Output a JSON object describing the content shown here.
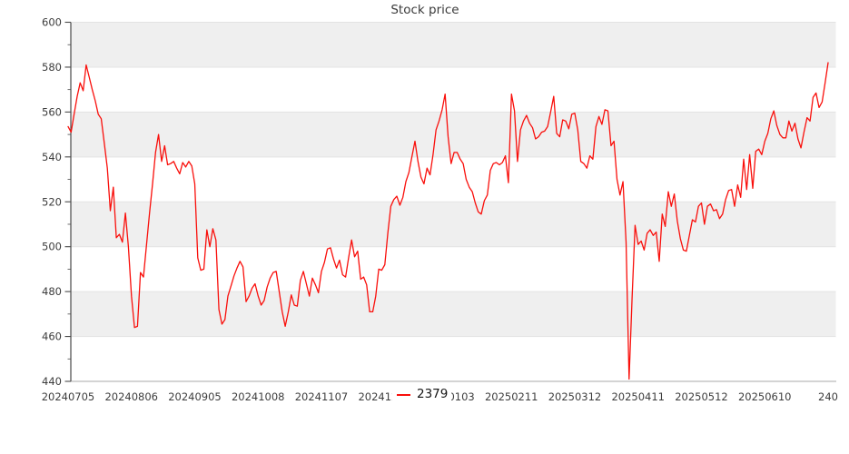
{
  "title": "Stock price",
  "legend": {
    "series_label": "2379"
  },
  "colors": {
    "line": "#f90f0b",
    "band": "#efefef",
    "grid_line": "#e3e3e3",
    "spine": "#4a4a4a",
    "baseline": "#a8a8a8",
    "tick_label": "#3d3d3d",
    "title": "#3a3a3a",
    "legend_text": "#141414"
  },
  "chart_data": {
    "type": "line",
    "title": "Stock price",
    "xlabel": "",
    "ylabel": "",
    "ylim": [
      440,
      600
    ],
    "y_major_step": 20,
    "y_minor_step": 10,
    "y_tick_labels": [
      "440",
      "460",
      "480",
      "500",
      "520",
      "540",
      "560",
      "580",
      "600"
    ],
    "grid": "horizontal-bands",
    "legend_position": "bottom-center",
    "x_ticks": [
      {
        "label": "20240705",
        "index": 0
      },
      {
        "label": "20240806",
        "index": 21
      },
      {
        "label": "20240905",
        "index": 42
      },
      {
        "label": "20241008",
        "index": 63
      },
      {
        "label": "20241107",
        "index": 84
      },
      {
        "label": "20241209",
        "index": 105
      },
      {
        "label": "20250103",
        "index": 126
      },
      {
        "label": "20250211",
        "index": 147
      },
      {
        "label": "20250312",
        "index": 168
      },
      {
        "label": "20250411",
        "index": 189
      },
      {
        "label": "20250512",
        "index": 210
      },
      {
        "label": "20250610",
        "index": 231
      },
      {
        "label": "240",
        "index": 252
      }
    ],
    "series": [
      {
        "name": "2379",
        "values": [
          553.5,
          551,
          559,
          567,
          573,
          569.5,
          581,
          575.5,
          570,
          565,
          559,
          557,
          546,
          535,
          516,
          526.5,
          504,
          505.5,
          502,
          515,
          500,
          478,
          464,
          464.5,
          488.5,
          486.5,
          501,
          515,
          528,
          542,
          550,
          538,
          545,
          536.5,
          537,
          538,
          535,
          532.5,
          537.5,
          535.5,
          538,
          536,
          528,
          495,
          489.5,
          490,
          507.5,
          500,
          508,
          503,
          472,
          465.5,
          467.5,
          478,
          482.5,
          487,
          490.5,
          493.5,
          491,
          475.5,
          478,
          481.5,
          483.5,
          478,
          474,
          476,
          482,
          486,
          488.5,
          489,
          480,
          471,
          464.5,
          471,
          478.5,
          474,
          473.5,
          485,
          489,
          483.5,
          478,
          486,
          483,
          479.5,
          489,
          493,
          499,
          499.5,
          494.5,
          490.5,
          494,
          487.5,
          486.5,
          495,
          503,
          495.5,
          498,
          485.5,
          486.5,
          483,
          471,
          471,
          478,
          490,
          489.5,
          492,
          506,
          518,
          521,
          522.5,
          518.5,
          522,
          529,
          533,
          540,
          547,
          538,
          531,
          528,
          535,
          532,
          541,
          552,
          556,
          561,
          568,
          549,
          537,
          542,
          542,
          539,
          537,
          530,
          526.5,
          524.5,
          519.5,
          515.5,
          514.5,
          520.5,
          523,
          534,
          537,
          537.5,
          536.5,
          537.5,
          540.5,
          528.5,
          568,
          560.5,
          538,
          552,
          556,
          558.5,
          555,
          553,
          548,
          549,
          551,
          551.5,
          553.5,
          560,
          567,
          550.5,
          549,
          556.5,
          556,
          552.5,
          559,
          559.5,
          552,
          538,
          537,
          535,
          540.5,
          539,
          553.5,
          558,
          554.5,
          561,
          560.5,
          545,
          547,
          530,
          523,
          529,
          502,
          441,
          477,
          509.5,
          501,
          502.5,
          498.5,
          506,
          507.5,
          505,
          506.5,
          493.5,
          514.5,
          509,
          524.5,
          518,
          523.5,
          511.5,
          503.5,
          498.5,
          498,
          505,
          512,
          511,
          518,
          519.5,
          510,
          518,
          519,
          516,
          516.5,
          512.5,
          514.5,
          521,
          525,
          525.5,
          518,
          527.5,
          522,
          539,
          525.5,
          541,
          526,
          542.5,
          543.5,
          541,
          547,
          550.5,
          557,
          560.5,
          554,
          550,
          548.5,
          548.5,
          556,
          551.5,
          555,
          548,
          544,
          551,
          557.5,
          556,
          566.5,
          568.5,
          562,
          564.5,
          573,
          582
        ]
      }
    ]
  }
}
